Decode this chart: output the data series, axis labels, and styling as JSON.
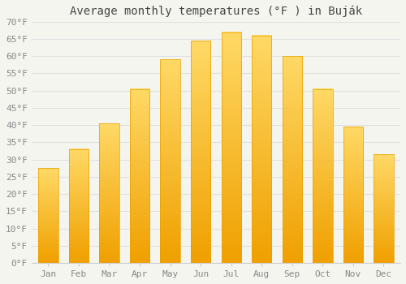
{
  "title": "Average monthly temperatures (°F ) in Buják",
  "months": [
    "Jan",
    "Feb",
    "Mar",
    "Apr",
    "May",
    "Jun",
    "Jul",
    "Aug",
    "Sep",
    "Oct",
    "Nov",
    "Dec"
  ],
  "values": [
    27.5,
    33.0,
    40.5,
    50.5,
    59.0,
    64.5,
    67.0,
    66.0,
    60.0,
    50.5,
    39.5,
    31.5
  ],
  "bar_color_bottom": "#F0A000",
  "bar_color_top": "#FFD966",
  "ylim": [
    0,
    70
  ],
  "ytick_step": 5,
  "background_color": "#f5f5f0",
  "plot_bg_color": "#f5f5f0",
  "grid_color": "#e0e0e0",
  "title_fontsize": 10,
  "tick_fontsize": 8,
  "tick_color": "#888888",
  "spine_color": "#cccccc"
}
